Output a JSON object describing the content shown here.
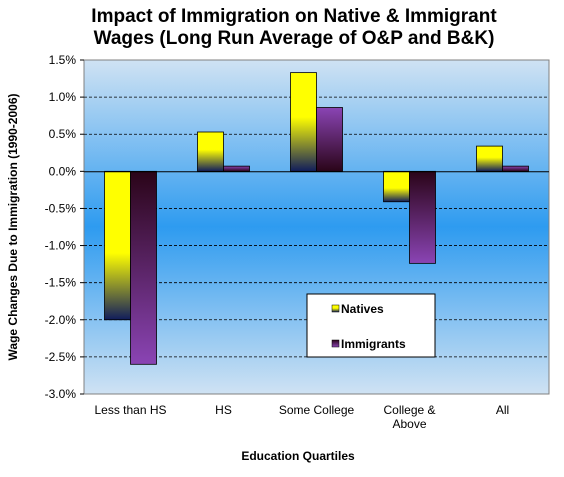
{
  "chart_data": {
    "type": "bar",
    "title_lines": [
      "Impact of Immigration on Native & Immigrant",
      "Wages (Long Run Average of O&P and B&K)"
    ],
    "xlabel": "Education Quartiles",
    "ylabel": "Wage Changes Due to Immigration (1990-2006)",
    "categories": [
      [
        "Less than HS"
      ],
      [
        "HS"
      ],
      [
        "Some College"
      ],
      [
        "College &",
        "Above"
      ],
      [
        "All"
      ]
    ],
    "series": [
      {
        "name": "Natives",
        "values": [
          -2.0,
          0.53,
          1.33,
          -0.41,
          0.34
        ]
      },
      {
        "name": "Immigrants",
        "values": [
          -2.6,
          0.07,
          0.86,
          -1.24,
          0.07
        ]
      }
    ],
    "ylim": [
      -3.0,
      1.5
    ],
    "yticks": [
      "1.5%",
      "1.0%",
      "0.5%",
      "0.0%",
      "-0.5%",
      "-1.0%",
      "-1.5%",
      "-2.0%",
      "-2.5%",
      "-3.0%"
    ],
    "grid": true,
    "legend_position": "bottom-right inside plot",
    "colors": {
      "plot_bg_top": "#cfe2f3",
      "plot_bg_mid": "#2e9bf0",
      "natives_light": "#ffff00",
      "natives_dark": "#101c5c",
      "immigrants_light": "#8a44b4",
      "immigrants_dark": "#2a0418"
    }
  }
}
